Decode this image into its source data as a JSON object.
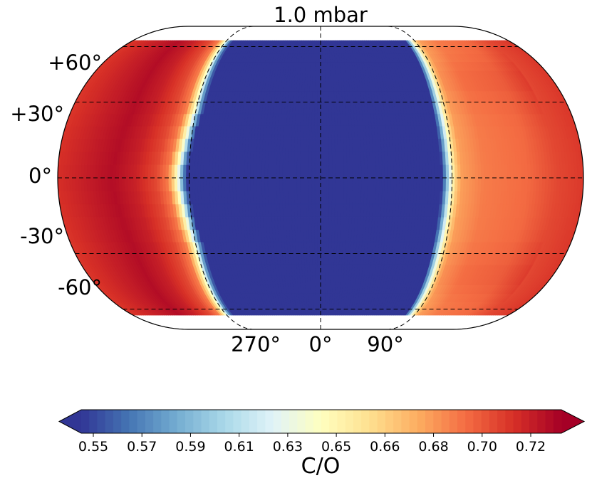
{
  "chart_data": {
    "type": "heatmap",
    "projection": "robinson",
    "title": "1.0 mbar",
    "variable": "C/O",
    "colormap": "RdYlBu_r",
    "vmin": 0.55,
    "vmax": 0.73,
    "colorbar_extend": "both",
    "colorbar_label": "C/O",
    "colorbar_ticks": [
      "0.55",
      "0.57",
      "0.59",
      "0.61",
      "0.63",
      "0.65",
      "0.66",
      "0.68",
      "0.70",
      "0.72"
    ],
    "lat_gridlines": [
      60,
      30,
      0,
      -30,
      -60
    ],
    "lat_labels": [
      "+60°",
      "+30°",
      "0°",
      "-30°",
      "-60°"
    ],
    "lon_labels": [
      "270°",
      "0°",
      "90°"
    ],
    "lat_extent": [
      -65,
      65
    ],
    "field_profile": [
      {
        "lon": -180,
        "value": 0.71
      },
      {
        "lon": -150,
        "value": 0.72
      },
      {
        "lon": -135,
        "value": 0.725
      },
      {
        "lon": -120,
        "value": 0.718
      },
      {
        "lon": -105,
        "value": 0.705
      },
      {
        "lon": -97,
        "value": 0.69
      },
      {
        "lon": -93,
        "value": 0.66
      },
      {
        "lon": -90,
        "value": 0.63
      },
      {
        "lon": -87,
        "value": 0.58
      },
      {
        "lon": -84,
        "value": 0.55
      },
      {
        "lon": 0,
        "value": 0.55
      },
      {
        "lon": 81,
        "value": 0.55
      },
      {
        "lon": 84,
        "value": 0.585
      },
      {
        "lon": 87,
        "value": 0.63
      },
      {
        "lon": 90,
        "value": 0.662
      },
      {
        "lon": 94,
        "value": 0.68
      },
      {
        "lon": 110,
        "value": 0.69
      },
      {
        "lon": 140,
        "value": 0.695
      },
      {
        "lon": 160,
        "value": 0.705
      },
      {
        "lon": 180,
        "value": 0.71
      }
    ],
    "notes": "Night side (270°–90° via 180°) is red/high C/O; day side (−84°..81°) is saturated blue (below 0.55)."
  }
}
